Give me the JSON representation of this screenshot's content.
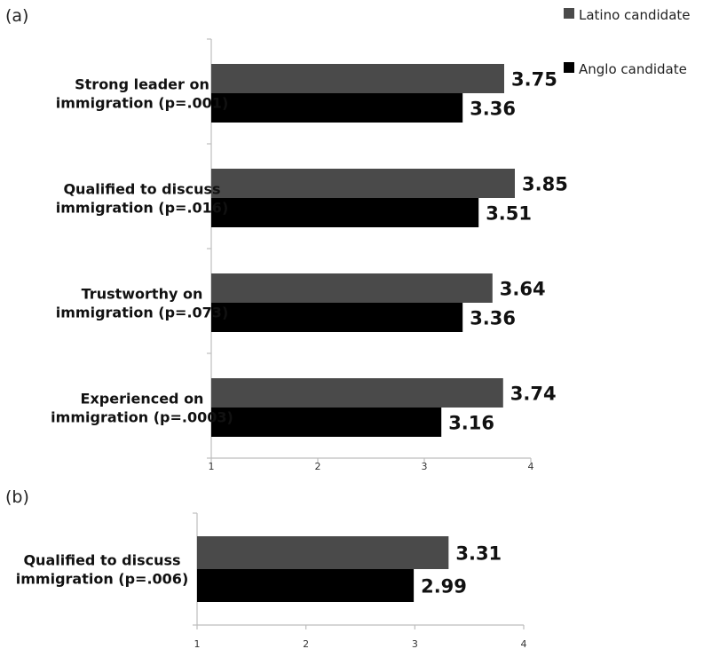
{
  "chart_data": [
    {
      "panel_label": "(a)",
      "type": "bar",
      "orientation": "horizontal",
      "categories": [
        [
          "Strong leader on",
          "immigration  (p=.001)"
        ],
        [
          "Qualified to discuss",
          "immigration (p=.016)"
        ],
        [
          "Trustworthy on",
          "immigration (p=.073)"
        ],
        [
          "Experienced on",
          "immigration (p=.0003)"
        ]
      ],
      "series": [
        {
          "name": "Latino candidate",
          "color": "#4a4a4a",
          "values": [
            3.75,
            3.85,
            3.64,
            3.74
          ]
        },
        {
          "name": "Anglo candidate",
          "color": "#000000",
          "values": [
            3.36,
            3.51,
            3.36,
            3.16
          ]
        }
      ],
      "xlim": [
        1,
        4
      ],
      "xticks": [
        "1",
        "2",
        "3",
        "4"
      ],
      "legend": "top-right"
    },
    {
      "panel_label": "(b)",
      "type": "bar",
      "orientation": "horizontal",
      "categories": [
        [
          "Qualified to discuss",
          "immigration (p=.006)"
        ]
      ],
      "series": [
        {
          "name": "Latino candidate",
          "color": "#4a4a4a",
          "values": [
            3.31
          ]
        },
        {
          "name": "Anglo candidate",
          "color": "#000000",
          "values": [
            2.99
          ]
        }
      ],
      "xlim": [
        1,
        4
      ],
      "xticks": [
        "1",
        "2",
        "3",
        "4"
      ]
    }
  ],
  "legend": [
    {
      "label": "Latino candidate",
      "color": "#4a4a4a"
    },
    {
      "label": "Anglo candidate",
      "color": "#000000"
    }
  ]
}
